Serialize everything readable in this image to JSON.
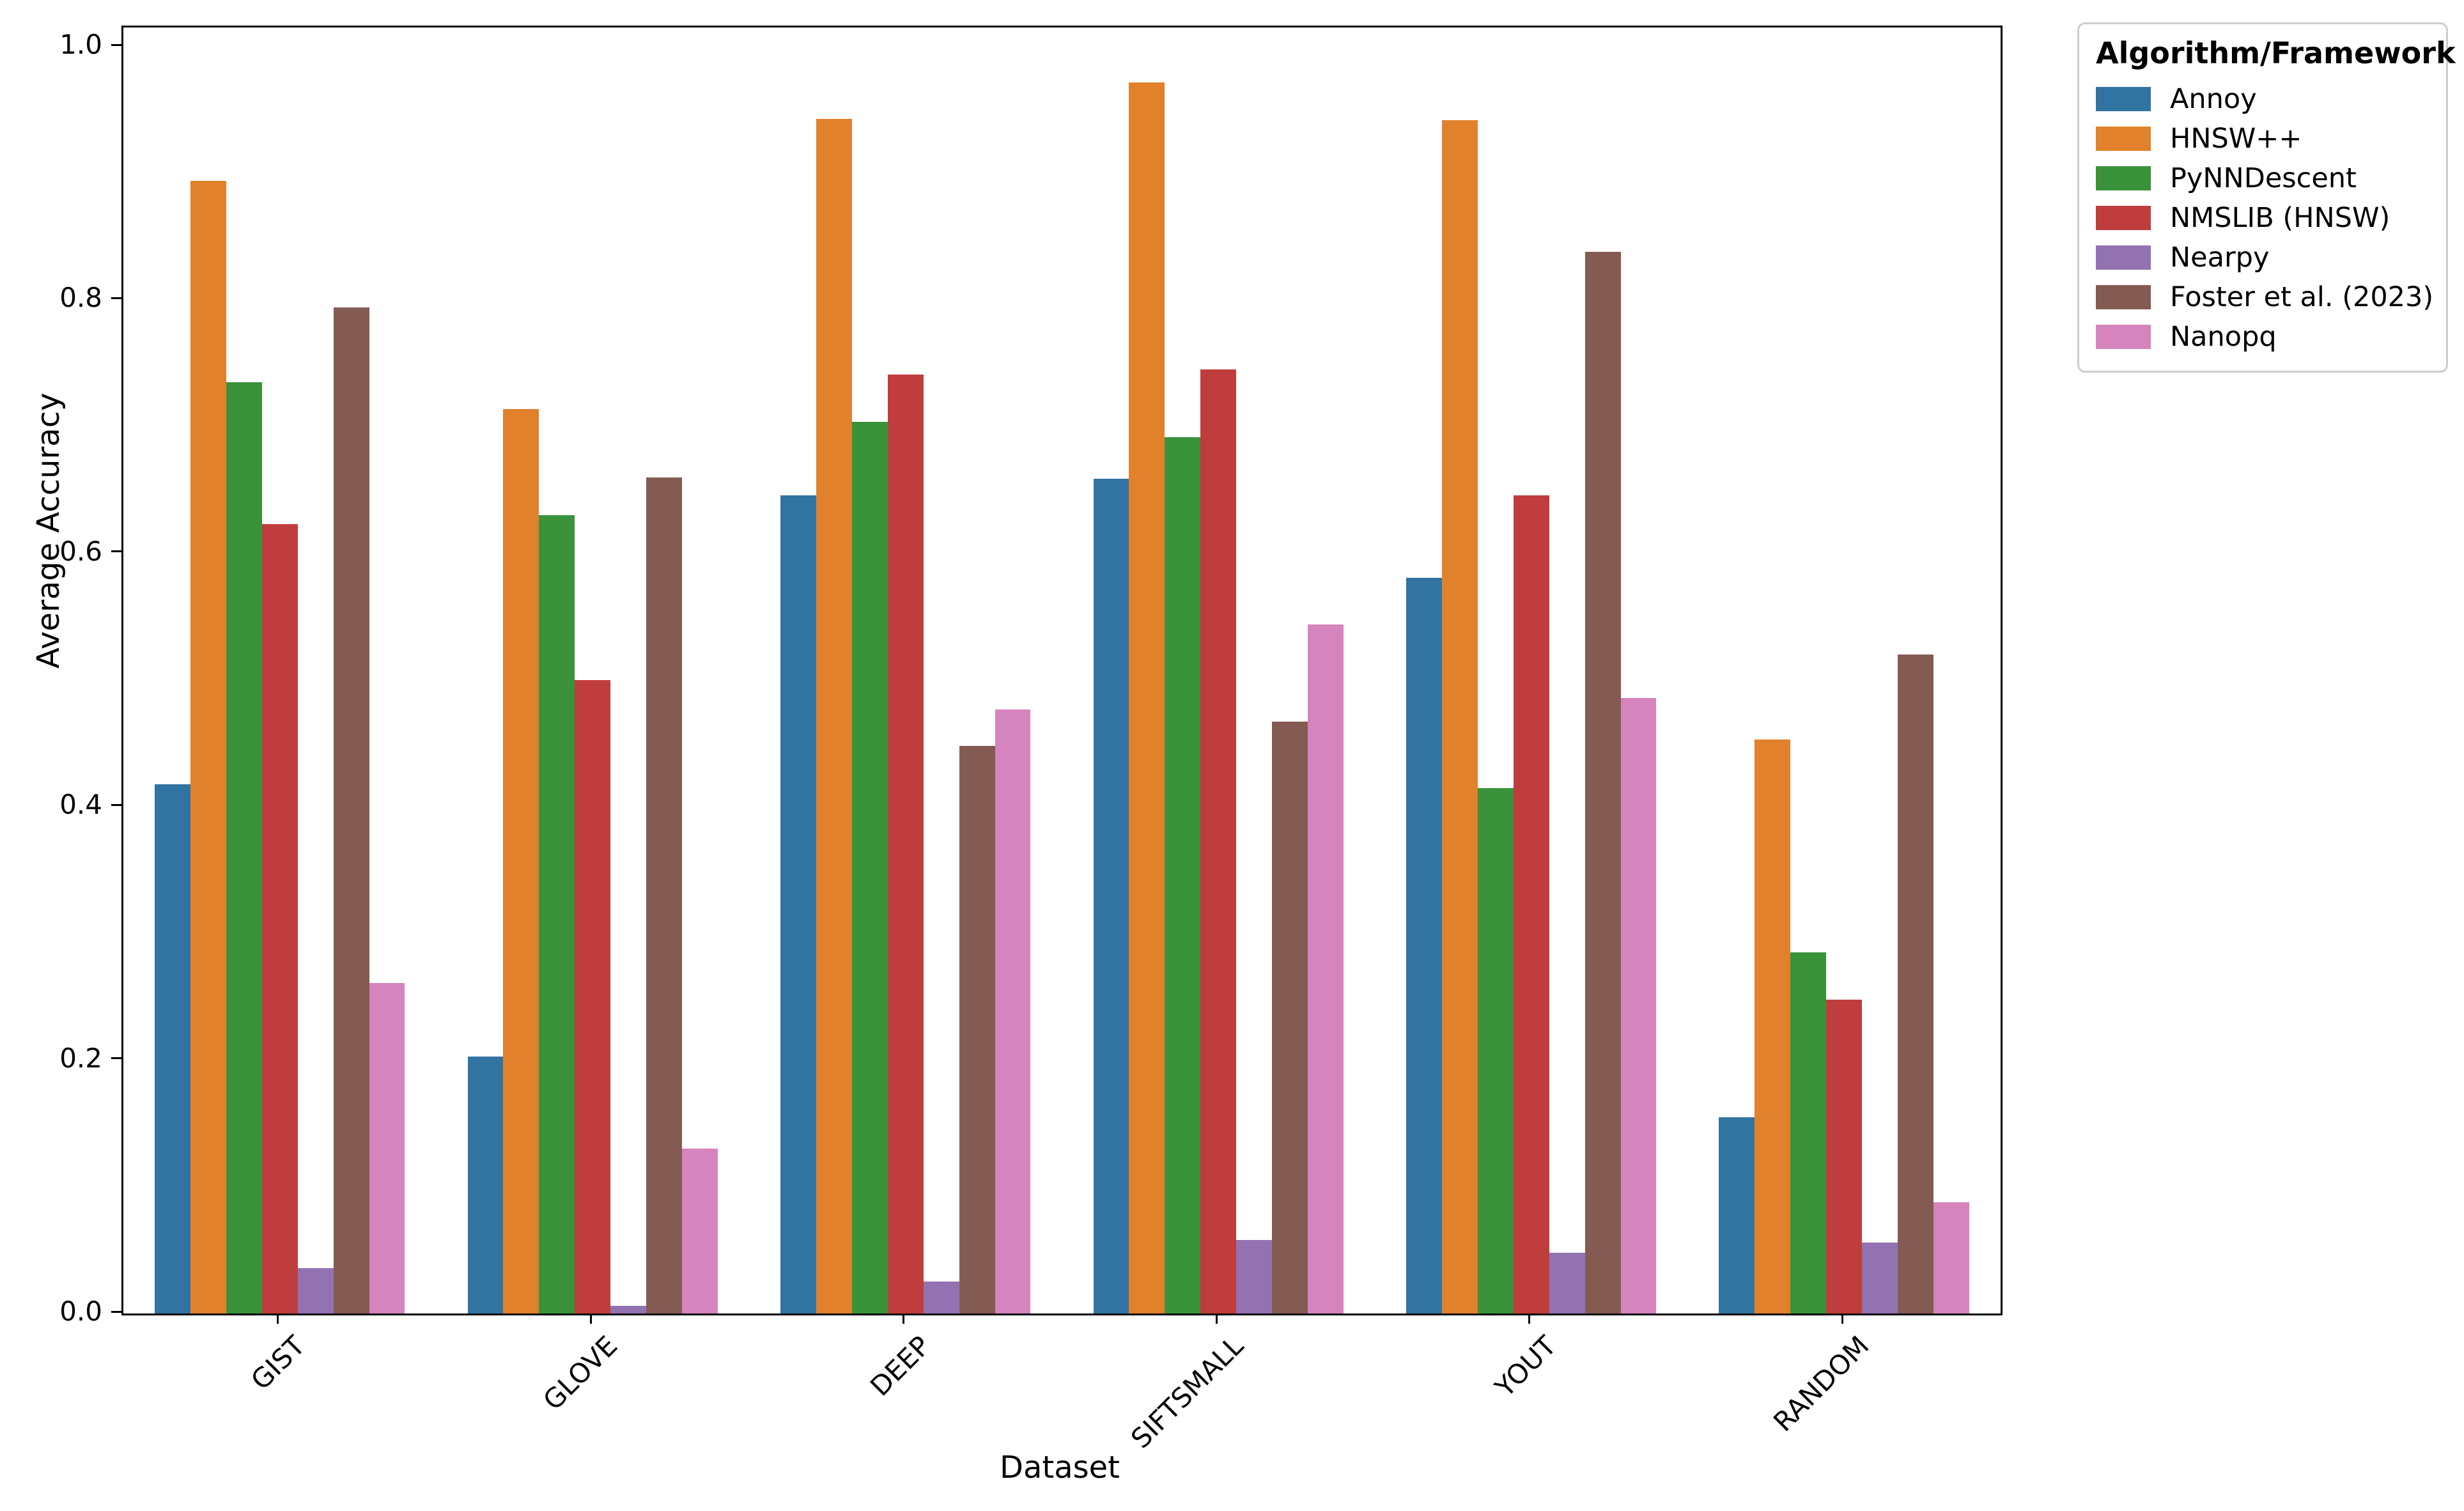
{
  "figure": {
    "y_axis_label": "Average Accuracy",
    "x_axis_label": "Dataset",
    "ytick_labels": [
      "0.0",
      "0.2",
      "0.4",
      "0.6",
      "0.8",
      "1.0"
    ]
  },
  "legend": {
    "title": "Algorithm/Framework"
  },
  "chart_data": {
    "type": "bar",
    "title": "",
    "xlabel": "Dataset",
    "ylabel": "Average Accuracy",
    "categories": [
      "GIST",
      "GLOVE",
      "DEEP",
      "SIFTSMALL",
      "YOUT",
      "RANDOM"
    ],
    "series": [
      {
        "name": "Annoy",
        "color": "#3274A1",
        "values": [
          0.418,
          0.203,
          0.646,
          0.659,
          0.581,
          0.155
        ]
      },
      {
        "name": "HNSW++",
        "color": "#E1812C",
        "values": [
          0.894,
          0.714,
          0.943,
          0.972,
          0.942,
          0.453
        ]
      },
      {
        "name": "PyNNDescent",
        "color": "#3A923A",
        "values": [
          0.735,
          0.63,
          0.704,
          0.692,
          0.415,
          0.285
        ]
      },
      {
        "name": "NMSLIB (HNSW)",
        "color": "#C03D3E",
        "values": [
          0.623,
          0.5,
          0.741,
          0.745,
          0.646,
          0.248
        ]
      },
      {
        "name": "Nearpy",
        "color": "#9372B2",
        "values": [
          0.036,
          0.006,
          0.025,
          0.058,
          0.048,
          0.056
        ]
      },
      {
        "name": "Foster et al. (2023)",
        "color": "#845B53",
        "values": [
          0.794,
          0.66,
          0.448,
          0.467,
          0.838,
          0.52
        ]
      },
      {
        "name": "Nanopq",
        "color": "#D684BD",
        "values": [
          0.261,
          0.13,
          0.477,
          0.544,
          0.486,
          0.088
        ]
      }
    ],
    "yticks": [
      0.0,
      0.2,
      0.4,
      0.6,
      0.8,
      1.0
    ],
    "ylim": [
      0.0,
      1.015
    ],
    "grid": false,
    "legend_title": "Algorithm/Framework",
    "legend_position": "outside-upper-right"
  }
}
